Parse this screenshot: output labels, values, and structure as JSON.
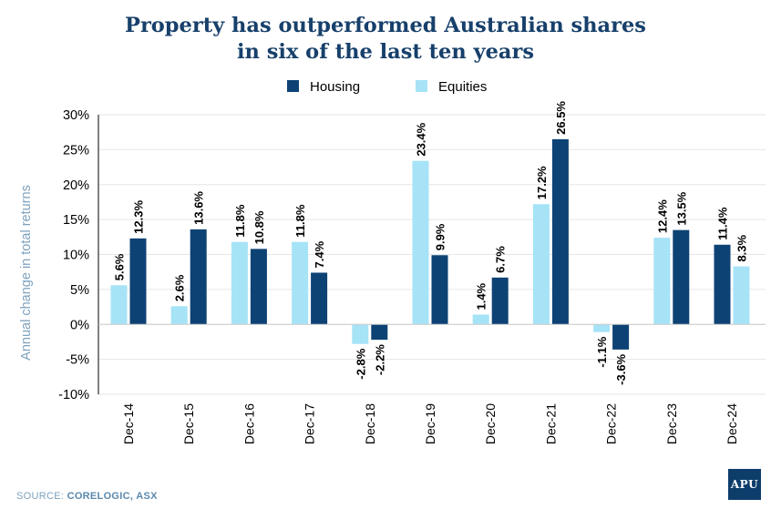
{
  "title": {
    "line1": "Property has outperformed Australian shares",
    "line2": "in six of the last ten years"
  },
  "source": {
    "prefix": "SOURCE: ",
    "text": "CORELOGIC, ASX"
  },
  "logo": {
    "text": "APU"
  },
  "colors": {
    "housing": "#0d4274",
    "equities": "#a6e3f6",
    "grid": "#e6e6e6",
    "axis": "#000000",
    "ylabel": "#7da2bf"
  },
  "chart_data": {
    "type": "bar",
    "categories": [
      "Dec-14",
      "Dec-15",
      "Dec-16",
      "Dec-17",
      "Dec-18",
      "Dec-19",
      "Dec-20",
      "Dec-21",
      "Dec-22",
      "Dec-23",
      "Dec-24"
    ],
    "series": [
      {
        "name": "Housing",
        "values": [
          12.3,
          13.6,
          10.8,
          7.4,
          -2.2,
          9.9,
          6.7,
          26.5,
          -3.6,
          13.5,
          11.4
        ]
      },
      {
        "name": "Equities",
        "values": [
          5.6,
          2.6,
          11.8,
          11.8,
          -2.8,
          23.4,
          1.4,
          17.2,
          -1.1,
          12.4,
          8.3
        ]
      }
    ],
    "value_labels": {
      "Housing": [
        "12.3%",
        "13.6%",
        "10.8%",
        "7.4%",
        "-2.2%",
        "9.9%",
        "6.7%",
        "26.5%",
        "-3.6%",
        "13.5%",
        "11.4%"
      ],
      "Equities": [
        "5.6%",
        "2.6%",
        "11.8%",
        "11.8%",
        "-2.8%",
        "23.4%",
        "1.4%",
        "17.2%",
        "-1.1%",
        "12.4%",
        "8.3%"
      ]
    },
    "bar_order": [
      "Equities",
      "Equities",
      "Equities",
      "Equities",
      "Equities",
      "Equities",
      "Equities",
      "Equities",
      "Equities",
      "Equities",
      "Housing"
    ],
    "legend": [
      "Housing",
      "Equities"
    ],
    "legend_position": "top-center",
    "ylabel": "Annual change in total returns",
    "xlabel": "",
    "ylim": [
      -10,
      30
    ],
    "yticks": [
      -10,
      -5,
      0,
      5,
      10,
      15,
      20,
      25,
      30
    ],
    "ytick_labels": [
      "-10%",
      "-5%",
      "0%",
      "5%",
      "10%",
      "15%",
      "20%",
      "25%",
      "30%"
    ],
    "grid": true
  }
}
